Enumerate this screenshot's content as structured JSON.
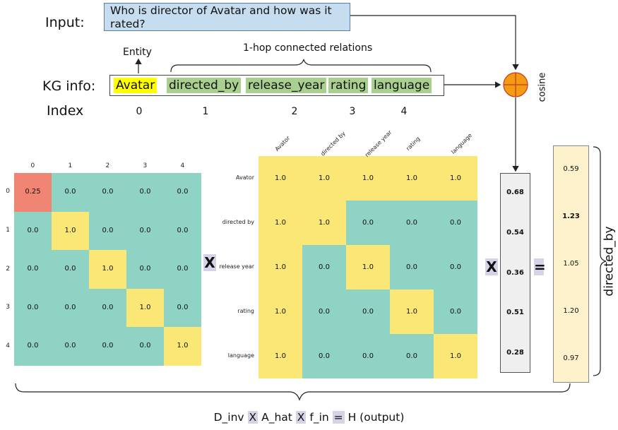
{
  "top": {
    "input_label": "Input:",
    "input_text": "Who is director of Avatar and how was it rated?",
    "entity_label": "Entity",
    "relations_label": "1-hop connected relations",
    "kg_label": "KG info:",
    "entity": "Avatar",
    "relations": [
      "directed_by",
      "release_year",
      "rating",
      "language"
    ],
    "index_label": "Index",
    "indices": [
      "0",
      "1",
      "2",
      "3",
      "4"
    ],
    "cosine_label": "cosine"
  },
  "d_inv": {
    "col_ticks": [
      "0",
      "1",
      "2",
      "3",
      "4"
    ],
    "row_ticks": [
      "0",
      "1",
      "2",
      "3",
      "4"
    ],
    "values": [
      [
        "0.25",
        "0.0",
        "0.0",
        "0.0",
        "0.0"
      ],
      [
        "0.0",
        "1.0",
        "0.0",
        "0.0",
        "0.0"
      ],
      [
        "0.0",
        "0.0",
        "1.0",
        "0.0",
        "0.0"
      ],
      [
        "0.0",
        "0.0",
        "0.0",
        "1.0",
        "0.0"
      ],
      [
        "0.0",
        "0.0",
        "0.0",
        "0.0",
        "1.0"
      ]
    ],
    "colors": {
      "low": "#8fd3c4",
      "high": "#fbe776",
      "first": "#f08573"
    }
  },
  "a_hat": {
    "col_ticks": [
      "Avator",
      "directed by",
      "release year",
      "rating",
      "language"
    ],
    "row_ticks": [
      "Avator",
      "directed by",
      "release year",
      "rating",
      "language"
    ],
    "values": [
      [
        "1.0",
        "1.0",
        "1.0",
        "1.0",
        "1.0"
      ],
      [
        "1.0",
        "1.0",
        "0.0",
        "0.0",
        "0.0"
      ],
      [
        "1.0",
        "0.0",
        "1.0",
        "0.0",
        "0.0"
      ],
      [
        "1.0",
        "0.0",
        "0.0",
        "1.0",
        "0.0"
      ],
      [
        "1.0",
        "0.0",
        "0.0",
        "0.0",
        "1.0"
      ]
    ]
  },
  "f_in": {
    "values": [
      "0.68",
      "0.54",
      "0.36",
      "0.51",
      "0.28"
    ]
  },
  "h_out": {
    "values": [
      "0.59",
      "1.23",
      "1.05",
      "1.20",
      "0.97"
    ],
    "bold_index": 1,
    "label": "directed_by"
  },
  "operators": {
    "times": "X",
    "equals": "="
  },
  "equation": {
    "d_inv": "D_inv",
    "x1": "X",
    "a_hat": "A_hat",
    "x2": "X",
    "f_in": "f_in",
    "eq": "=",
    "h": "H (output)"
  }
}
